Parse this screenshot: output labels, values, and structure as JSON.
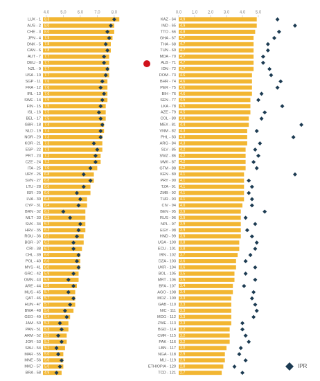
{
  "chart_data": [
    {
      "type": "bar",
      "orientation": "horizontal",
      "color": "#f2b632",
      "marker_color": "#1c3b52",
      "categories": [
        "LUX - 1",
        "AUS - 2",
        "CHE - 3",
        "JPN - 4",
        "DNK - 5",
        "CAN - 6",
        "AUT - 7",
        "DEU - 8",
        "NZL - 9",
        "USA - 10",
        "SGP - 11",
        "FRA - 12",
        "IRL - 13",
        "SWE - 14",
        "FIN - 15",
        "ISL - 16",
        "BEL - 17",
        "GBR - 18",
        "NLD - 19",
        "NOR - 20",
        "KOR - 21",
        "ESP - 22",
        "PRT - 23",
        "CZE - 24",
        "ITA - 25",
        "URY - 26",
        "SVN - 27",
        "LTU - 28",
        "ISR - 29",
        "LVA - 30",
        "CYP - 31",
        "BRN - 32",
        "MLT - 33",
        "SVK - 34",
        "HRV - 35",
        "ROU - 36",
        "BGR - 37",
        "CRI - 38",
        "CHL - 39",
        "POL - 40",
        "MYS - 41",
        "GRC - 42",
        "OMN - 43",
        "ARE - 44",
        "MUS - 45",
        "QAT - 46",
        "HUN - 47",
        "BWA - 48",
        "GEO - 49",
        "JAM - 50",
        "PAN - 51",
        "ARM - 52",
        "JOR - 53",
        "SAU - 54",
        "MAR - 55",
        "MNE - 56",
        "MKD - 57",
        "BRA - 58"
      ],
      "values": [
        8.3,
        8.0,
        8.0,
        7.9,
        7.8,
        7.8,
        7.7,
        7.7,
        7.7,
        7.7,
        7.6,
        7.6,
        7.6,
        7.6,
        7.5,
        7.5,
        7.5,
        7.4,
        7.4,
        7.3,
        7.3,
        7.3,
        7.2,
        7.2,
        7.0,
        6.8,
        6.8,
        6.6,
        6.6,
        6.4,
        6.4,
        6.3,
        6.3,
        6.3,
        6.3,
        6.2,
        6.2,
        6.1,
        6.0,
        6.0,
        6.0,
        5.9,
        5.9,
        5.8,
        5.7,
        5.7,
        5.7,
        5.6,
        5.4,
        5.3,
        5.3,
        5.2,
        5.2,
        5.1,
        5.0,
        5.0,
        5.0,
        4.9
      ],
      "value_labels": [
        "8.3",
        "8.0",
        "8.0",
        "7.9",
        "7.8",
        "7.8",
        "7.7",
        "7.7",
        "7.7",
        "7.7",
        "7.6",
        "7.6",
        "7.6",
        "7.6",
        "7.5",
        "7.5",
        "7.5",
        "7.4",
        "7.4",
        "7.3",
        "7.3",
        "7.3",
        "7.2",
        "7.2",
        "7.0",
        "6.8",
        "6.8",
        "6.6",
        "6.6",
        "6.4",
        "6.4",
        "6.3",
        "6.3",
        "6.3",
        "6.3",
        "6.2",
        "6.2",
        "6.1",
        "6.0",
        "6.0",
        "6.0",
        "5.9",
        "5.9",
        "5.8",
        "5.7",
        "5.7",
        "5.7",
        "5.6",
        "5.4",
        "5.3",
        "5.3",
        "5.2",
        "5.2",
        "5.1",
        "5.0",
        "5.0",
        "5.0",
        "4.9"
      ],
      "marker_values": [
        8.0,
        7.8,
        7.6,
        7.7,
        7.5,
        7.6,
        7.4,
        7.4,
        7.6,
        7.5,
        7.3,
        7.2,
        7.4,
        7.3,
        7.2,
        7.1,
        7.2,
        7.3,
        7.2,
        7.2,
        6.8,
        7.0,
        6.9,
        6.9,
        6.6,
        6.2,
        6.6,
        6.2,
        5.8,
        6.0,
        5.9,
        5.0,
        5.4,
        6.0,
        5.9,
        5.8,
        5.6,
        5.6,
        5.9,
        5.8,
        5.9,
        5.6,
        5.3,
        5.6,
        5.3,
        5.6,
        5.4,
        5.1,
        5.2,
        4.8,
        4.9,
        4.7,
        4.9,
        4.6,
        4.7,
        4.9,
        4.8,
        4.6
      ],
      "xlim": [
        3.8,
        8.8
      ],
      "xticks": [
        {
          "value": 4,
          "label": "4.0"
        },
        {
          "value": 5,
          "label": "5.0"
        },
        {
          "value": 6,
          "label": "6.0"
        },
        {
          "value": 7,
          "label": "7.0"
        },
        {
          "value": 8,
          "label": "8.0"
        }
      ]
    },
    {
      "type": "bar",
      "orientation": "horizontal",
      "color": "#f2b632",
      "marker_color": "#1c3b52",
      "categories": [
        "KAZ - 64",
        "IND - 65",
        "TTO - 66",
        "GHA - 67",
        "THA - 68",
        "TUN - 69",
        "MDA - 70",
        "ALB - 71",
        "IDN - 72",
        "DOM - 73",
        "BHR - 74",
        "PER - 75",
        "BIH - 76",
        "SEN - 77",
        "LKA - 78",
        "AZE - 79",
        "COL - 80",
        "MEX - 81",
        "VNM - 82",
        "PHL - 83",
        "ARG - 84",
        "SLV - 85",
        "SWZ - 86",
        "MWI - 87",
        "GTM - 88",
        "KEN - 89",
        "PRY - 90",
        "TZA - 91",
        "ZMB - 92",
        "TUR - 93",
        "CIV - 94",
        "BEN - 95",
        "RUS - 96",
        "NPL - 97",
        "EGY - 98",
        "HND - 99",
        "UGA - 100",
        "ECU - 101",
        "IRN - 102",
        "DZA - 103",
        "UKR - 104",
        "BOL - 105",
        "MRT - 106",
        "BFA - 107",
        "AGO - 108",
        "MOZ - 109",
        "GAB - 110",
        "NIC - 111",
        "MDG - 112",
        "ZWE - 113",
        "BGD - 114",
        "CMR - 115",
        "PAK - 116",
        "LBN - 117",
        "NGA - 118",
        "MLI - 119",
        "ETHIOPIA - 120",
        "TCD - 121"
      ],
      "values": [
        4.9,
        4.9,
        4.8,
        4.7,
        4.7,
        4.7,
        4.7,
        4.7,
        4.7,
        4.6,
        4.6,
        4.6,
        4.6,
        4.5,
        4.5,
        4.5,
        4.4,
        4.4,
        4.3,
        4.3,
        4.3,
        4.2,
        4.2,
        4.2,
        4.2,
        4.1,
        4.1,
        4.1,
        4.1,
        4.1,
        4.0,
        3.9,
        3.9,
        3.9,
        3.9,
        3.9,
        3.8,
        3.8,
        3.7,
        3.6,
        3.6,
        3.5,
        3.5,
        3.4,
        3.4,
        3.3,
        3.3,
        3.3,
        3.3,
        3.3,
        3.2,
        3.2,
        3.2,
        3.0,
        2.9,
        2.9,
        2.8,
        2.7
      ],
      "value_labels": [
        "4.9",
        "4.9",
        "4.8",
        "4.7",
        "4.7",
        "4.7",
        "4.7",
        "4.7",
        "4.7",
        "4.6",
        "4.6",
        "4.6",
        "4.6",
        "4.5",
        "4.5",
        "4.5",
        "4.4",
        "4.4",
        "4.3",
        "4.3",
        "4.3",
        "4.2",
        "4.2",
        "4.2",
        "4.2",
        "4.1",
        "4.1",
        "4.1",
        "4.1",
        "4.1",
        "4.0",
        "3.9",
        "3.9",
        "3.9",
        "3.9",
        "3.9",
        "3.8",
        "3.8",
        "3.7",
        "3.6",
        "3.6",
        "3.5",
        "3.5",
        "3.4",
        "3.4",
        "3.3",
        "3.3",
        "3.3",
        "3.3",
        "3.3",
        "3.2",
        "3.2",
        "3.2",
        "3.0",
        "2.9",
        "2.9",
        "2.8",
        "2.7"
      ],
      "marker_values": [
        6.2,
        7.3,
        6.3,
        6.0,
        5.6,
        5.6,
        5.3,
        5.3,
        5.7,
        5.8,
        6.4,
        6.2,
        5.2,
        5.0,
        6.5,
        5.4,
        5.2,
        7.7,
        4.9,
        7.2,
        5.1,
        4.8,
        5.0,
        4.7,
        4.9,
        7.3,
        4.4,
        4.6,
        4.4,
        4.6,
        4.6,
        5.4,
        4.2,
        4.8,
        4.3,
        4.6,
        4.9,
        4.8,
        4.5,
        4.2,
        4.8,
        4.2,
        4.8,
        4.1,
        4.7,
        4.6,
        4.8,
        4.9,
        4.7,
        4.0,
        4.0,
        4.2,
        4.4,
        3.9,
        3.8,
        4.2,
        3.5,
        4.0
      ],
      "xlim": [
        0,
        8
      ],
      "xticks": [
        {
          "value": 0,
          "label": "0.0"
        },
        {
          "value": 1,
          "label": "1.0"
        },
        {
          "value": 2,
          "label": "2.0"
        },
        {
          "value": 3,
          "label": "3.0"
        },
        {
          "value": 4,
          "label": "4.0"
        },
        {
          "value": 5,
          "label": "5.0"
        }
      ]
    }
  ],
  "legend": {
    "name": "IPR",
    "color": "#1c3b52"
  }
}
